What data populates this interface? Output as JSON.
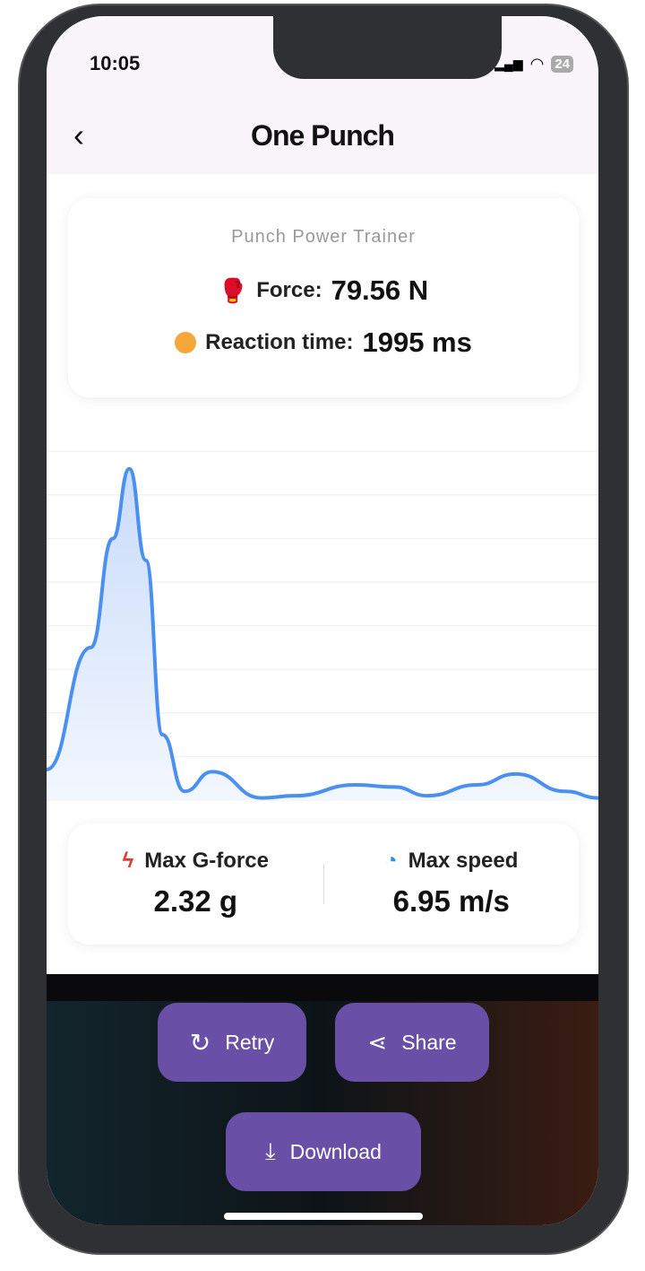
{
  "status_bar": {
    "time": "10:05",
    "battery": "24"
  },
  "header": {
    "title": "One Punch"
  },
  "summary": {
    "subtitle": "Punch Power Trainer",
    "force_label": "Force:",
    "force_value": "79.56 N",
    "reaction_label": "Reaction time:",
    "reaction_value": "1995 ms"
  },
  "chart_data": {
    "type": "area",
    "grid": true,
    "line_color": "#4a90f0",
    "x": [
      0,
      8,
      12,
      15,
      18,
      21,
      25,
      30,
      39,
      45,
      56,
      63,
      69,
      78,
      85,
      94,
      100
    ],
    "values": [
      0.7,
      3.5,
      6,
      7.6,
      5.5,
      1.5,
      0.2,
      0.65,
      0.05,
      0.1,
      0.35,
      0.3,
      0.1,
      0.35,
      0.6,
      0.2,
      0.05
    ],
    "ylim": [
      0,
      9
    ]
  },
  "stats": {
    "gforce_label": "Max G-force",
    "gforce_value": "2.32 g",
    "speed_label": "Max speed",
    "speed_value": "6.95 m/s"
  },
  "actions": {
    "retry": "Retry",
    "share": "Share",
    "download": "Download"
  },
  "colors": {
    "accent": "#6a4fa7",
    "line": "#4a90f0"
  }
}
